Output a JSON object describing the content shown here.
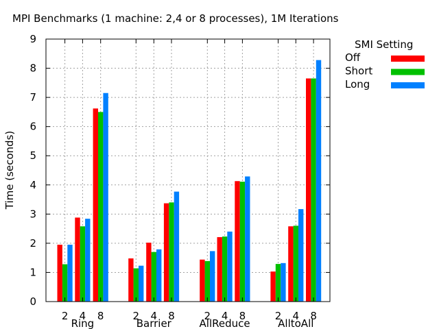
{
  "chart_data": {
    "type": "bar",
    "title": "MPI Benchmarks (1 machine: 2,4 or 8 processes), 1M Iterations",
    "xlabel": "",
    "ylabel": "Time (seconds)",
    "ylim": [
      0,
      9
    ],
    "yticks": [
      "0",
      "1",
      "2",
      "3",
      "4",
      "5",
      "6",
      "7",
      "8",
      "9"
    ],
    "grid": true,
    "legend": {
      "title": "SMI Setting",
      "position": "outside-right"
    },
    "groups": [
      {
        "name": "Ring",
        "processes": [
          "2",
          "4",
          "8"
        ]
      },
      {
        "name": "Barrier",
        "processes": [
          "2",
          "4",
          "8"
        ]
      },
      {
        "name": "AllReduce",
        "processes": [
          "2",
          "4",
          "8"
        ]
      },
      {
        "name": "AlltoAll",
        "processes": [
          "2",
          "4",
          "8"
        ]
      }
    ],
    "series": [
      {
        "name": "Off",
        "color": "#ff0000",
        "values": [
          [
            1.95,
            2.88,
            6.62
          ],
          [
            1.48,
            2.02,
            3.37
          ],
          [
            1.44,
            2.21,
            4.13
          ],
          [
            1.03,
            2.58,
            7.65
          ]
        ]
      },
      {
        "name": "Short",
        "color": "#00c000",
        "values": [
          [
            1.28,
            2.58,
            6.5
          ],
          [
            1.14,
            1.7,
            3.4
          ],
          [
            1.39,
            2.23,
            4.11
          ],
          [
            1.29,
            2.6,
            7.65
          ]
        ]
      },
      {
        "name": "Long",
        "color": "#0080ff",
        "values": [
          [
            1.95,
            2.84,
            7.15
          ],
          [
            1.23,
            1.79,
            3.77
          ],
          [
            1.73,
            2.4,
            4.29
          ],
          [
            1.32,
            3.17,
            8.28
          ]
        ]
      }
    ]
  }
}
